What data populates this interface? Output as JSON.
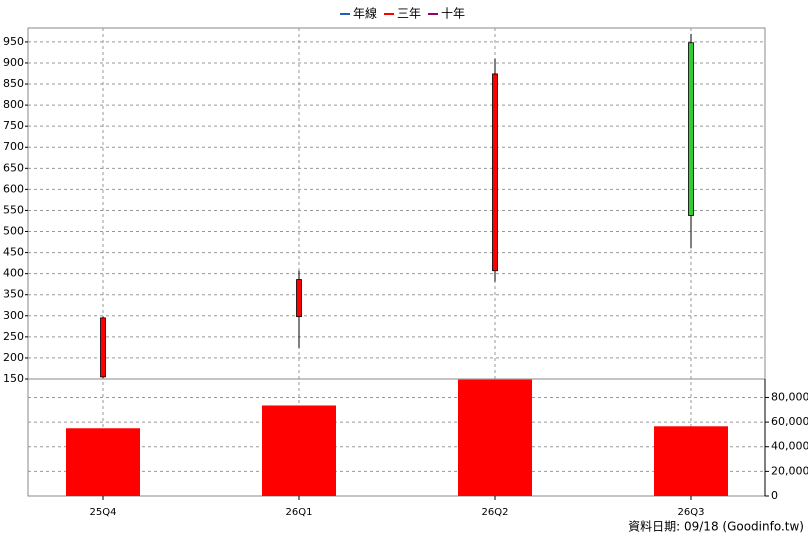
{
  "chart_data": {
    "type": "candlestick",
    "categories": [
      "25Q4",
      "26Q1",
      "26Q2",
      "26Q3"
    ],
    "open": [
      155,
      298,
      407,
      948
    ],
    "high": [
      298,
      407,
      910,
      969
    ],
    "low": [
      152,
      224,
      381,
      460
    ],
    "close": [
      295,
      386,
      874,
      538
    ],
    "volume": [
      55000,
      73500,
      94500,
      56600
    ],
    "up_color": "#ff0000",
    "down_color": "#33cc33",
    "volume_color": "#ff0000",
    "ylim": [
      150,
      983
    ],
    "yticks": [
      150,
      200,
      250,
      300,
      350,
      400,
      450,
      500,
      550,
      600,
      650,
      700,
      750,
      800,
      850,
      900,
      950
    ],
    "y2lim": [
      0,
      95000
    ],
    "y2ticks": [
      0,
      {
        "value": 20000,
        "label": "20,000"
      },
      {
        "value": 40000,
        "label": "40,000"
      },
      {
        "value": 60000,
        "label": "60,000"
      },
      {
        "value": 80000,
        "label": "80,000"
      }
    ],
    "grid": true,
    "legend": [
      {
        "name": "年線",
        "color": "#1f5fbf"
      },
      {
        "name": "三年",
        "color": "#ff0000"
      },
      {
        "name": "十年",
        "color": "#990066"
      }
    ],
    "footnote": "資料日期: 09/18  (Goodinfo.tw)"
  }
}
